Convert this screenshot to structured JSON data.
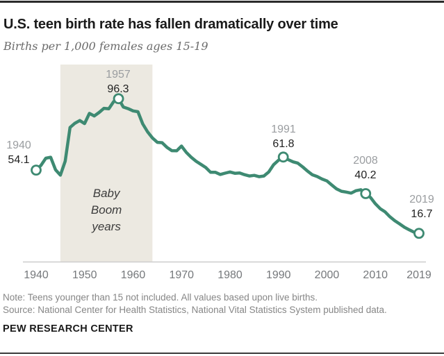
{
  "header": {
    "title": "U.S. teen birth rate has fallen dramatically over time",
    "subtitle": "Births per 1,000 females ages 15-19"
  },
  "chart_data": {
    "type": "line",
    "title": "U.S. teen birth rate has fallen dramatically over time",
    "ylabel": "Births per 1,000 females ages 15-19",
    "xlabel": "",
    "xlim": [
      1940,
      2019
    ],
    "ylim": [
      0,
      116
    ],
    "grid": false,
    "legend": "none",
    "line_color": "#3E8A72",
    "marker_style": "open-circle",
    "x": [
      1940,
      1941,
      1942,
      1943,
      1944,
      1945,
      1946,
      1947,
      1948,
      1949,
      1950,
      1951,
      1952,
      1953,
      1954,
      1955,
      1956,
      1957,
      1958,
      1959,
      1960,
      1961,
      1962,
      1963,
      1964,
      1965,
      1966,
      1967,
      1968,
      1969,
      1970,
      1971,
      1972,
      1973,
      1974,
      1975,
      1976,
      1977,
      1978,
      1979,
      1980,
      1981,
      1982,
      1983,
      1984,
      1985,
      1986,
      1987,
      1988,
      1989,
      1990,
      1991,
      1992,
      1993,
      1994,
      1995,
      1996,
      1997,
      1998,
      1999,
      2000,
      2001,
      2002,
      2003,
      2004,
      2005,
      2006,
      2007,
      2008,
      2009,
      2010,
      2011,
      2012,
      2013,
      2014,
      2015,
      2016,
      2017,
      2018,
      2019
    ],
    "values": [
      54.1,
      56.9,
      61.1,
      61.7,
      54.3,
      51.1,
      59.3,
      79.3,
      81.8,
      83.4,
      81.6,
      87.6,
      86.1,
      88.2,
      90.6,
      90.3,
      94.6,
      96.3,
      91.4,
      90.4,
      89.1,
      88.6,
      81.4,
      76.7,
      73.1,
      70.5,
      70.3,
      67.5,
      65.6,
      65.5,
      68.3,
      64.5,
      61.7,
      59.3,
      57.5,
      55.6,
      52.8,
      52.8,
      51.5,
      52.3,
      53.0,
      52.2,
      52.4,
      51.4,
      50.6,
      51.0,
      50.2,
      50.6,
      53.0,
      57.3,
      59.9,
      61.8,
      60.3,
      59.0,
      58.2,
      56.0,
      53.5,
      51.3,
      50.3,
      48.8,
      47.7,
      45.3,
      43.0,
      41.6,
      41.1,
      40.5,
      41.9,
      42.5,
      40.2,
      37.9,
      34.2,
      31.3,
      29.4,
      26.5,
      24.2,
      22.3,
      20.3,
      18.8,
      17.4,
      16.7
    ],
    "x_ticks": [
      "1940",
      "1950",
      "1960",
      "1970",
      "1980",
      "1990",
      "2000",
      "2010",
      "2019"
    ],
    "annotations": [
      {
        "year": 1940,
        "value": 54.1,
        "year_label": "1940",
        "value_label": "54.1"
      },
      {
        "year": 1957,
        "value": 96.3,
        "year_label": "1957",
        "value_label": "96.3"
      },
      {
        "year": 1991,
        "value": 61.8,
        "year_label": "1991",
        "value_label": "61.8"
      },
      {
        "year": 2008,
        "value": 40.2,
        "year_label": "2008",
        "value_label": "40.2"
      },
      {
        "year": 2019,
        "value": 16.7,
        "year_label": "2019",
        "value_label": "16.7"
      }
    ],
    "shaded_region": {
      "label": "Baby Boom years",
      "start_year": 1945,
      "end_year": 1964,
      "color": "#ECE9E1"
    }
  },
  "footer": {
    "note": "Note: Teens younger than 15 not included. All values based upon live births.",
    "source": "Source: National Center for Health Statistics, National Vital Statistics System published data.",
    "brand": "PEW RESEARCH CENTER"
  }
}
